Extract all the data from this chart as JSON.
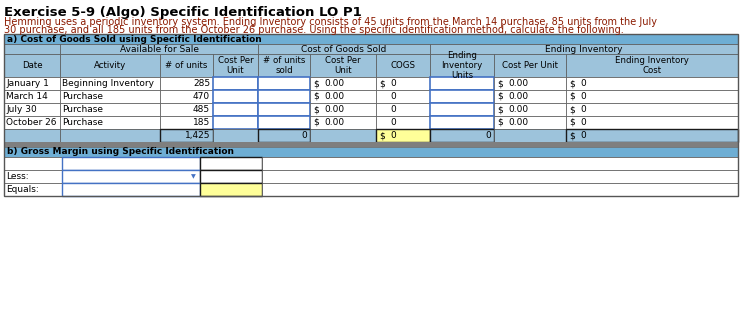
{
  "title": "Exercise 5-9 (Algo) Specific Identification LO P1",
  "desc_line1": "Hemming uses a periodic inventory system. Ending Inventory consists of 45 units from the March 14 purchase, 85 units from the July",
  "desc_line2": "30 purchase, and all 185 units from the October 26 purchase. Using the specific identification method, calculate the following.",
  "header_bg": "#6eaed4",
  "subheader_bg": "#9dc3db",
  "totals_bg": "#9dc3db",
  "yellow_bg": "#ffff99",
  "grey_sep": "#7f7f7f",
  "white_bg": "#ffffff",
  "blue_border": "#4472c4",
  "dark_border": "#1a1a1a",
  "mid_border": "#555555",
  "section_a_title": "a) Cost of Goods Sold using Specific Identification",
  "section_b_title": "b) Gross Margin using Specific Identification",
  "dates": [
    "January 1",
    "March 14",
    "July 30",
    "October 26"
  ],
  "activities": [
    "Beginning Inventory",
    "Purchase",
    "Purchase",
    "Purchase"
  ],
  "units": [
    "285",
    "470",
    "485",
    "185"
  ],
  "total_units": "1,425",
  "font_size": 6.5,
  "title_font_size": 9.5,
  "desc_font_size": 7.0
}
